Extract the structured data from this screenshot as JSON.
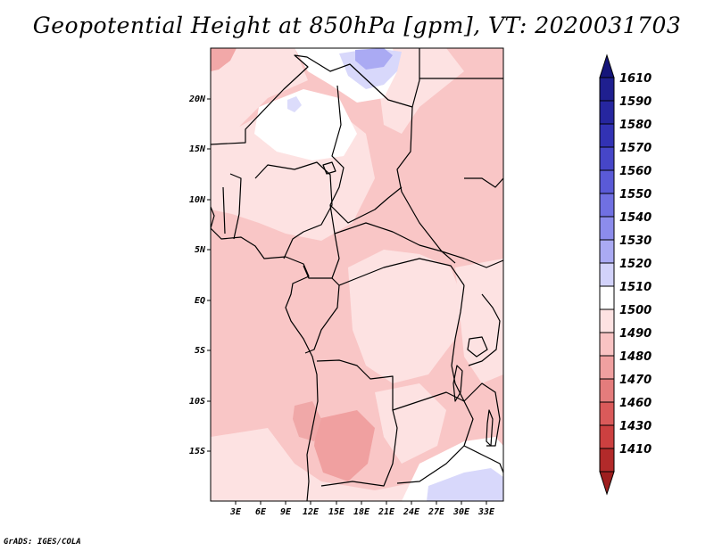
{
  "title": "Geopotential Height at 850hPa [gpm], VT: 2020031703",
  "credit": "GrADS: IGES/COLA",
  "map": {
    "lon_range": [
      0,
      35
    ],
    "lat_range": [
      -20,
      25
    ],
    "lon_ticks": [
      {
        "value": 3,
        "label": "3E"
      },
      {
        "value": 6,
        "label": "6E"
      },
      {
        "value": 9,
        "label": "9E"
      },
      {
        "value": 12,
        "label": "12E"
      },
      {
        "value": 15,
        "label": "15E"
      },
      {
        "value": 18,
        "label": "18E"
      },
      {
        "value": 21,
        "label": "21E"
      },
      {
        "value": 24,
        "label": "24E"
      },
      {
        "value": 27,
        "label": "27E"
      },
      {
        "value": 30,
        "label": "30E"
      },
      {
        "value": 33,
        "label": "33E"
      }
    ],
    "lat_ticks": [
      {
        "value": 20,
        "label": "20N"
      },
      {
        "value": 15,
        "label": "15N"
      },
      {
        "value": 10,
        "label": "10N"
      },
      {
        "value": 5,
        "label": "5N"
      },
      {
        "value": 0,
        "label": "EQ"
      },
      {
        "value": -5,
        "label": "5S"
      },
      {
        "value": -10,
        "label": "10S"
      },
      {
        "value": -15,
        "label": "15S"
      }
    ]
  },
  "colorbar": {
    "levels": [
      {
        "label": "1610",
        "color": "#1f1f8f"
      },
      {
        "label": "1590",
        "color": "#26269f"
      },
      {
        "label": "1580",
        "color": "#3232b4"
      },
      {
        "label": "1570",
        "color": "#4646c8"
      },
      {
        "label": "1560",
        "color": "#5a5ad7"
      },
      {
        "label": "1550",
        "color": "#7070e2"
      },
      {
        "label": "1540",
        "color": "#8c8cec"
      },
      {
        "label": "1530",
        "color": "#aaaaf3"
      },
      {
        "label": "1520",
        "color": "#d2d2fa"
      },
      {
        "label": "1510",
        "color": "#ffffff"
      },
      {
        "label": "1500",
        "color": "#fde2e2"
      },
      {
        "label": "1490",
        "color": "#f9c3c3"
      },
      {
        "label": "1480",
        "color": "#f0a0a0"
      },
      {
        "label": "1470",
        "color": "#e47c7c"
      },
      {
        "label": "1460",
        "color": "#da5a5a"
      },
      {
        "label": "1430",
        "color": "#cc4040"
      },
      {
        "label": "1410",
        "color": "#b22a2a"
      }
    ],
    "top_cap_color": "#15157a",
    "bottom_cap_color": "#9e1e1e"
  }
}
